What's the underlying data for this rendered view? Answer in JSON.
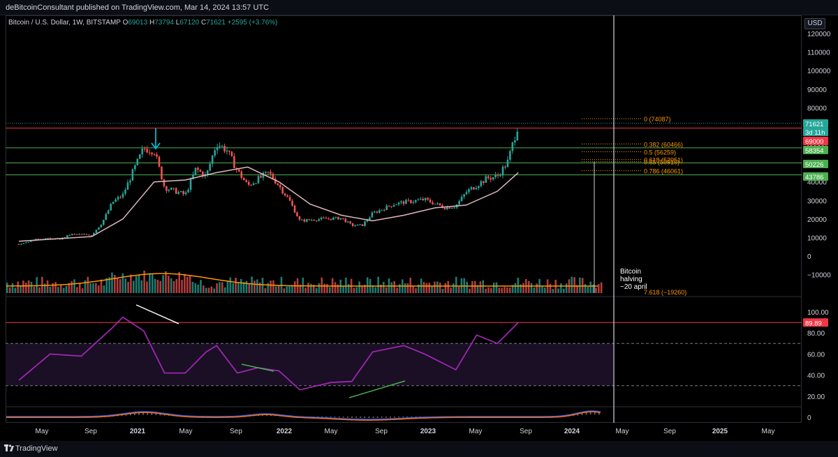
{
  "header": {
    "publish_line": "deBitcoinConsultant published on TradingView.com, Mar 14, 2024 13:57 UTC"
  },
  "symbol": {
    "name": "Bitcoin / U.S. Dollar, 1W, BITSTAMP",
    "open_label": "O",
    "open": "69013",
    "high_label": "H",
    "high": "73794",
    "low_label": "L",
    "low": "67120",
    "close_label": "C",
    "close": "71621",
    "change": "+2595 (+3.76%)"
  },
  "currency_button": "USD",
  "price_axis": {
    "ticks": [
      "120000",
      "110000",
      "100000",
      "90000",
      "80000",
      "70000",
      "60000",
      "50000",
      "40000",
      "30000",
      "20000",
      "10000",
      "0",
      "−10000"
    ],
    "tick_values": [
      120000,
      110000,
      100000,
      90000,
      80000,
      70000,
      60000,
      50000,
      40000,
      30000,
      20000,
      10000,
      0,
      -10000
    ]
  },
  "price_labels": [
    {
      "text": "71621",
      "color": "#26a69a",
      "value": 71621
    },
    {
      "text": "3d 11h",
      "color": "#26a69a",
      "value": 71621
    },
    {
      "text": "69000",
      "color": "#f23645",
      "value": 69000
    },
    {
      "text": "58354",
      "color": "#4caf50",
      "value": 58354
    },
    {
      "text": "50226",
      "color": "#4caf50",
      "value": 50226
    },
    {
      "text": "43786",
      "color": "#4caf50",
      "value": 43786
    }
  ],
  "horizontal_levels": [
    {
      "value": 69000,
      "color": "#f23645"
    },
    {
      "value": 58354,
      "color": "#4caf50"
    },
    {
      "value": 50226,
      "color": "#4caf50"
    },
    {
      "value": 43786,
      "color": "#4caf50"
    }
  ],
  "fib_levels": [
    {
      "label": "0 (74087)",
      "value": 74087
    },
    {
      "label": "0.382 (60466)",
      "value": 60466
    },
    {
      "label": "0.5 (56259)",
      "value": 56259
    },
    {
      "label": "0.618 (52051)",
      "value": 52051
    },
    {
      "label": "0.65 (50910)",
      "value": 50910
    },
    {
      "label": "0.786 (46061)",
      "value": 46061
    },
    {
      "label": "7.618 (−19260)",
      "value": -19260
    }
  ],
  "annotation": {
    "halving_text": "Bitcoin\nhalving\n~20 april"
  },
  "rsi": {
    "ticks": [
      "100.00",
      "80.00",
      "60.00",
      "40.00",
      "20.00"
    ],
    "tick_values": [
      100,
      80,
      60,
      40,
      20
    ],
    "current_label": "89.89",
    "current_value": 89.89
  },
  "time_axis": {
    "labels": [
      "May",
      "Sep",
      "2021",
      "May",
      "Sep",
      "2022",
      "May",
      "Sep",
      "2023",
      "May",
      "Sep",
      "2024",
      "May",
      "Sep",
      "2025",
      "May"
    ]
  },
  "footer": {
    "brand": "TradingView"
  },
  "colors": {
    "up": "#26a69a",
    "down": "#ef5350",
    "ma": "#e1b8c0",
    "rsi": "#9c27b0",
    "fib": "#ff9800",
    "rsi_band": "#1a0f24",
    "vol_up": "#26a69a",
    "vol_down": "#ef5350"
  },
  "chart_data": {
    "type": "candlestick",
    "timeframe": "1W",
    "x_range": [
      "2020-03",
      "2025-06"
    ],
    "ohlc_close_approx": [
      {
        "date": "2020-03",
        "close": 6400
      },
      {
        "date": "2020-05",
        "close": 9500
      },
      {
        "date": "2020-07",
        "close": 9200
      },
      {
        "date": "2020-08",
        "close": 11700
      },
      {
        "date": "2020-10",
        "close": 11500
      },
      {
        "date": "2020-11",
        "close": 18000
      },
      {
        "date": "2020-12",
        "close": 29000
      },
      {
        "date": "2021-01",
        "close": 33000
      },
      {
        "date": "2021-02",
        "close": 46000
      },
      {
        "date": "2021-03",
        "close": 58000
      },
      {
        "date": "2021-04",
        "close": 57000
      },
      {
        "date": "2021-05",
        "close": 37000
      },
      {
        "date": "2021-06",
        "close": 35000
      },
      {
        "date": "2021-07",
        "close": 33000
      },
      {
        "date": "2021-08",
        "close": 47000
      },
      {
        "date": "2021-09",
        "close": 43000
      },
      {
        "date": "2021-10",
        "close": 61000
      },
      {
        "date": "2021-11",
        "close": 57000
      },
      {
        "date": "2021-12",
        "close": 46000
      },
      {
        "date": "2022-01",
        "close": 38000
      },
      {
        "date": "2022-03",
        "close": 45000
      },
      {
        "date": "2022-04",
        "close": 38000
      },
      {
        "date": "2022-05",
        "close": 30000
      },
      {
        "date": "2022-06",
        "close": 19000
      },
      {
        "date": "2022-08",
        "close": 20000
      },
      {
        "date": "2022-10",
        "close": 20500
      },
      {
        "date": "2022-11",
        "close": 16500
      },
      {
        "date": "2022-12",
        "close": 16600
      },
      {
        "date": "2023-01",
        "close": 23000
      },
      {
        "date": "2023-03",
        "close": 28000
      },
      {
        "date": "2023-04",
        "close": 29000
      },
      {
        "date": "2023-06",
        "close": 30500
      },
      {
        "date": "2023-08",
        "close": 26000
      },
      {
        "date": "2023-09",
        "close": 27000
      },
      {
        "date": "2023-10",
        "close": 34500
      },
      {
        "date": "2023-12",
        "close": 42000
      },
      {
        "date": "2024-01",
        "close": 43000
      },
      {
        "date": "2024-02",
        "close": 51000
      },
      {
        "date": "2024-03",
        "close": 71621
      }
    ],
    "moving_average_approx": [
      {
        "date": "2020-03",
        "value": 8000
      },
      {
        "date": "2020-10",
        "value": 10500
      },
      {
        "date": "2021-01",
        "value": 20000
      },
      {
        "date": "2021-04",
        "value": 40000
      },
      {
        "date": "2021-07",
        "value": 41000
      },
      {
        "date": "2021-10",
        "value": 45000
      },
      {
        "date": "2022-01",
        "value": 48000
      },
      {
        "date": "2022-04",
        "value": 40000
      },
      {
        "date": "2022-07",
        "value": 28000
      },
      {
        "date": "2022-10",
        "value": 22000
      },
      {
        "date": "2023-01",
        "value": 19000
      },
      {
        "date": "2023-04",
        "value": 22000
      },
      {
        "date": "2023-07",
        "value": 26000
      },
      {
        "date": "2023-10",
        "value": 27500
      },
      {
        "date": "2024-01",
        "value": 35000
      },
      {
        "date": "2024-03",
        "value": 45000
      }
    ],
    "rsi_approx": [
      {
        "date": "2020-03",
        "value": 35
      },
      {
        "date": "2020-06",
        "value": 60
      },
      {
        "date": "2020-09",
        "value": 58
      },
      {
        "date": "2020-12",
        "value": 85
      },
      {
        "date": "2021-01",
        "value": 95
      },
      {
        "date": "2021-03",
        "value": 82
      },
      {
        "date": "2021-05",
        "value": 42
      },
      {
        "date": "2021-07",
        "value": 42
      },
      {
        "date": "2021-09",
        "value": 62
      },
      {
        "date": "2021-10",
        "value": 68
      },
      {
        "date": "2021-12",
        "value": 42
      },
      {
        "date": "2022-02",
        "value": 47
      },
      {
        "date": "2022-04",
        "value": 44
      },
      {
        "date": "2022-06",
        "value": 26
      },
      {
        "date": "2022-09",
        "value": 33
      },
      {
        "date": "2022-11",
        "value": 34
      },
      {
        "date": "2023-01",
        "value": 62
      },
      {
        "date": "2023-04",
        "value": 68
      },
      {
        "date": "2023-06",
        "value": 60
      },
      {
        "date": "2023-09",
        "value": 45
      },
      {
        "date": "2023-11",
        "value": 78
      },
      {
        "date": "2024-01",
        "value": 70
      },
      {
        "date": "2024-03",
        "value": 89.89
      }
    ]
  }
}
